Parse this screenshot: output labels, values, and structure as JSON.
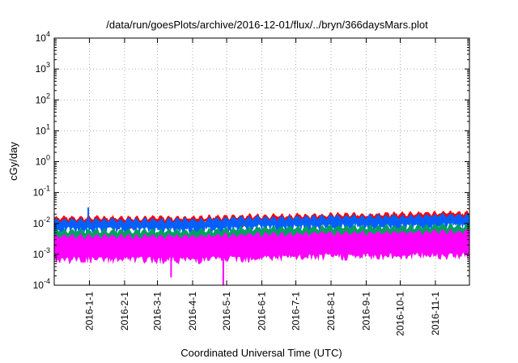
{
  "chart_data": {
    "type": "area",
    "title": "/data/run/goesPlots/archive/2016-12-01/flux/../bryn/366daysMars.plot",
    "xlabel": "Coordinated Universal Time (UTC)",
    "ylabel": "cGy/day",
    "y_scale": "log",
    "ylim": [
      0.0001,
      10000
    ],
    "xlim": [
      "2015-12-01",
      "2016-12-01"
    ],
    "grid": true,
    "y_ticks": [
      {
        "base": "10",
        "exp": "-4",
        "value": 0.0001
      },
      {
        "base": "10",
        "exp": "-3",
        "value": 0.001
      },
      {
        "base": "10",
        "exp": "-2",
        "value": 0.01
      },
      {
        "base": "10",
        "exp": "-1",
        "value": 0.1
      },
      {
        "base": "10",
        "exp": "0",
        "value": 1
      },
      {
        "base": "10",
        "exp": "1",
        "value": 10
      },
      {
        "base": "10",
        "exp": "2",
        "value": 100
      },
      {
        "base": "10",
        "exp": "3",
        "value": 1000
      },
      {
        "base": "10",
        "exp": "4",
        "value": 10000
      }
    ],
    "x_ticks": [
      {
        "label": "2016-1-1",
        "date": "2016-01-01"
      },
      {
        "label": "2016-2-1",
        "date": "2016-02-01"
      },
      {
        "label": "2016-3-1",
        "date": "2016-03-01"
      },
      {
        "label": "2016-4-1",
        "date": "2016-04-01"
      },
      {
        "label": "2016-5-1",
        "date": "2016-05-01"
      },
      {
        "label": "2016-6-1",
        "date": "2016-06-01"
      },
      {
        "label": "2016-7-1",
        "date": "2016-07-01"
      },
      {
        "label": "2016-8-1",
        "date": "2016-08-01"
      },
      {
        "label": "2016-9-1",
        "date": "2016-09-01"
      },
      {
        "label": "2016-10-1",
        "date": "2016-10-01"
      },
      {
        "label": "2016-11-1",
        "date": "2016-11-01"
      }
    ],
    "series": [
      {
        "color": "#ff0000",
        "x": [
          "2015-12-01",
          "2016-01-01",
          "2016-02-01",
          "2016-03-01",
          "2016-04-01",
          "2016-05-01",
          "2016-06-01",
          "2016-07-01",
          "2016-08-01",
          "2016-09-01",
          "2016-10-01",
          "2016-11-01",
          "2016-12-01"
        ],
        "values": [
          0.012,
          0.012,
          0.012,
          0.012,
          0.012,
          0.013,
          0.014,
          0.014,
          0.015,
          0.015,
          0.016,
          0.017,
          0.017
        ]
      },
      {
        "color": "#0060ff",
        "x": [
          "2015-12-01",
          "2016-01-01",
          "2016-02-01",
          "2016-03-01",
          "2016-04-01",
          "2016-05-01",
          "2016-06-01",
          "2016-07-01",
          "2016-08-01",
          "2016-09-01",
          "2016-10-01",
          "2016-11-01",
          "2016-12-01"
        ],
        "values": [
          0.01,
          0.01,
          0.01,
          0.01,
          0.01,
          0.011,
          0.012,
          0.012,
          0.013,
          0.013,
          0.013,
          0.014,
          0.014
        ]
      },
      {
        "color": "#00a060",
        "x": [
          "2015-12-01",
          "2016-01-01",
          "2016-02-01",
          "2016-03-01",
          "2016-04-01",
          "2016-05-01",
          "2016-06-01",
          "2016-07-01",
          "2016-08-01",
          "2016-09-01",
          "2016-10-01",
          "2016-11-01",
          "2016-12-01"
        ],
        "values": [
          0.0045,
          0.0045,
          0.0045,
          0.0045,
          0.0045,
          0.005,
          0.0055,
          0.0055,
          0.006,
          0.006,
          0.006,
          0.0065,
          0.0065
        ]
      },
      {
        "color": "#ff00ff",
        "x": [
          "2015-12-01",
          "2016-01-01",
          "2016-02-01",
          "2016-03-01",
          "2016-04-01",
          "2016-05-01",
          "2016-06-01",
          "2016-07-01",
          "2016-08-01",
          "2016-09-01",
          "2016-10-01",
          "2016-11-01",
          "2016-12-01"
        ],
        "values": [
          0.003,
          0.003,
          0.003,
          0.003,
          0.003,
          0.0032,
          0.0035,
          0.0035,
          0.0038,
          0.0038,
          0.004,
          0.0042,
          0.0042
        ]
      }
    ],
    "spikes": [
      {
        "date": "2015-12-31",
        "value": 0.033
      },
      {
        "date": "2016-03-13",
        "value": 0.00018
      },
      {
        "date": "2016-04-28",
        "value": 0.0001
      }
    ]
  },
  "colors": {
    "background": "#ffffff",
    "grid": "#999999",
    "axes": "#000000"
  }
}
